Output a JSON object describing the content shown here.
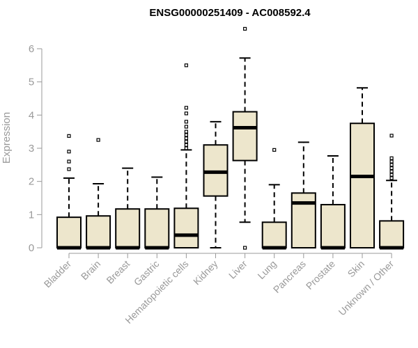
{
  "chart_data": {
    "type": "box",
    "title": "ENSG00000251409 - AC008592.4",
    "xlabel": "",
    "ylabel": "Expression",
    "ylim": [
      0,
      6.8
    ],
    "yticks": [
      0,
      1,
      2,
      3,
      4,
      5,
      6
    ],
    "grid": false,
    "colors": {
      "box_fill": "#ede6cc",
      "box_stroke": "#000000",
      "axis": "#999999"
    },
    "categories": [
      "Bladder",
      "Brain",
      "Breast",
      "Gastric",
      "Hematopoietic cells",
      "Kidney",
      "Liver",
      "Lung",
      "Pancreas",
      "Prostate",
      "Skin",
      "Unknown / Other"
    ],
    "boxes": [
      {
        "category": "Bladder",
        "whisker_low": 0,
        "q1": 0,
        "median": 0,
        "q3": 0.92,
        "whisker_high": 2.1,
        "outliers": [
          2.37,
          2.6,
          2.9,
          3.37
        ]
      },
      {
        "category": "Brain",
        "whisker_low": 0,
        "q1": 0,
        "median": 0,
        "q3": 0.96,
        "whisker_high": 1.93,
        "outliers": [
          3.25
        ]
      },
      {
        "category": "Breast",
        "whisker_low": 0,
        "q1": 0,
        "median": 0,
        "q3": 1.17,
        "whisker_high": 2.4,
        "outliers": []
      },
      {
        "category": "Gastric",
        "whisker_low": 0,
        "q1": 0,
        "median": 0,
        "q3": 1.17,
        "whisker_high": 2.13,
        "outliers": []
      },
      {
        "category": "Hematopoietic cells",
        "whisker_low": 0,
        "q1": 0,
        "median": 0.38,
        "q3": 1.19,
        "whisker_high": 2.95,
        "outliers": [
          3.0,
          3.1,
          3.2,
          3.3,
          3.4,
          3.5,
          3.65,
          3.8,
          4.05,
          4.22,
          5.5
        ]
      },
      {
        "category": "Kidney",
        "whisker_low": 0,
        "q1": 1.56,
        "median": 2.28,
        "q3": 3.1,
        "whisker_high": 3.8,
        "outliers": []
      },
      {
        "category": "Liver",
        "whisker_low": 0.77,
        "q1": 2.63,
        "median": 3.62,
        "q3": 4.1,
        "whisker_high": 5.72,
        "outliers": [
          0,
          6.6
        ]
      },
      {
        "category": "Lung",
        "whisker_low": 0,
        "q1": 0,
        "median": 0,
        "q3": 0.77,
        "whisker_high": 1.9,
        "outliers": [
          2.95
        ]
      },
      {
        "category": "Pancreas",
        "whisker_low": 0,
        "q1": 0,
        "median": 1.35,
        "q3": 1.65,
        "whisker_high": 3.18,
        "outliers": []
      },
      {
        "category": "Prostate",
        "whisker_low": 0,
        "q1": 0,
        "median": 0,
        "q3": 1.3,
        "whisker_high": 2.77,
        "outliers": []
      },
      {
        "category": "Skin",
        "whisker_low": 0,
        "q1": 0,
        "median": 2.15,
        "q3": 3.75,
        "whisker_high": 4.82,
        "outliers": []
      },
      {
        "category": "Unknown / Other",
        "whisker_low": 0,
        "q1": 0,
        "median": 0,
        "q3": 0.81,
        "whisker_high": 2.03,
        "outliers": [
          2.1,
          2.2,
          2.3,
          2.4,
          2.5,
          2.6,
          2.7,
          3.38
        ]
      }
    ]
  }
}
